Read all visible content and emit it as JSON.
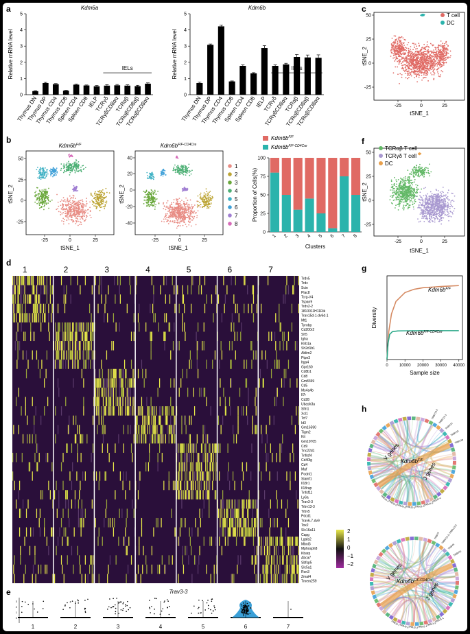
{
  "panel_labels": {
    "a": "a",
    "b": "b",
    "c": "c",
    "d": "d",
    "e": "e",
    "f": "f",
    "g": "g",
    "h": "h"
  },
  "colors": {
    "tcell": "#e06a64",
    "dc": "#2bb3ac",
    "cre_fill": "#2bb3ac",
    "ff_fill": "#e06a64",
    "tcrab": "#62b866",
    "tcrgd": "#a898d0",
    "dc_f": "#e8a04c",
    "heat_low": "#2a0f3a",
    "heat_high": "#e8e84a"
  },
  "chart_data": [
    {
      "id": "a-left",
      "type": "bar",
      "title": "Kdm6a",
      "ylabel": "Relative mRNA level",
      "categories": [
        "Thymus DN",
        "Thymus DP",
        "Thymus CD4",
        "Thymus CD8",
        "Spleen CD4",
        "Spleen CD8",
        "IELP",
        "TCRγδ",
        "TCRγδCD8αα",
        "TCRαβ",
        "TCRαβCD8αβ",
        "TCRαβCD8αα"
      ],
      "values": [
        0.22,
        0.72,
        0.65,
        0.25,
        0.62,
        0.57,
        0.52,
        0.56,
        0.58,
        0.56,
        0.53,
        0.68
      ],
      "errors": [
        0.03,
        0.04,
        0.04,
        0.02,
        0.04,
        0.03,
        0.05,
        0.06,
        0.05,
        0.05,
        0.05,
        0.05
      ],
      "ylim": [
        0,
        5
      ],
      "yticks": [
        0,
        1,
        2,
        3,
        4,
        5
      ],
      "bracket_label": "IELs",
      "bracket_range": [
        7,
        11
      ]
    },
    {
      "id": "a-right",
      "type": "bar",
      "title": "Kdm6b",
      "ylabel": "Relative mRNA level",
      "categories": [
        "Thymus DN",
        "Thymus DP",
        "Thymus CD4",
        "Thymus CD8",
        "Spleen CD4",
        "Spleen CD8",
        "IELP",
        "TCRγδ",
        "TCRγδCD8αα",
        "TCRαβ",
        "TCRαβCD8αβ",
        "TCRαβCD8αα"
      ],
      "values": [
        0.72,
        3.08,
        4.22,
        0.82,
        1.78,
        1.32,
        2.88,
        1.78,
        1.87,
        2.33,
        2.3,
        2.28
      ],
      "errors": [
        0.05,
        0.05,
        0.07,
        0.03,
        0.06,
        0.04,
        0.15,
        0.06,
        0.07,
        0.15,
        0.15,
        0.18
      ],
      "ylim": [
        0,
        5
      ],
      "yticks": [
        0,
        1,
        2,
        3,
        4,
        5
      ],
      "bracket_label": "IELs",
      "bracket_range": [
        7,
        11
      ]
    },
    {
      "id": "b-bar",
      "type": "bar",
      "stacked": true,
      "ylabel": "Proportion of Cells(%)",
      "xlabel": "Clusters",
      "categories": [
        "1",
        "2",
        "3",
        "4",
        "5",
        "6",
        "7",
        "8"
      ],
      "series": [
        {
          "name": "Kdm6b",
          "sup": "F/F-CD4Cre",
          "values": [
            80,
            50,
            30,
            45,
            25,
            5,
            75,
            50
          ]
        },
        {
          "name": "Kdm6b",
          "sup": "F/F",
          "values": [
            20,
            50,
            70,
            55,
            75,
            95,
            25,
            50
          ]
        }
      ],
      "ylim": [
        0,
        100
      ],
      "yticks": [
        0,
        25,
        50,
        75,
        100
      ]
    },
    {
      "id": "g",
      "type": "line",
      "ylabel": "Diversity",
      "xlabel": "Sample size",
      "xticks": [
        0,
        10000,
        20000,
        30000,
        40000
      ],
      "xlim": [
        0,
        42000
      ],
      "ylim": [
        0,
        1800
      ],
      "series": [
        {
          "name": "Kdm6b",
          "sup": "F/F",
          "x": [
            0,
            1000,
            2500,
            5000,
            10000,
            15000,
            20000,
            30000,
            40000
          ],
          "y": [
            0,
            600,
            980,
            1250,
            1440,
            1510,
            1545,
            1570,
            1590
          ]
        },
        {
          "name": "Kdm6b",
          "sup": "F/F-CD4Cre",
          "x": [
            0,
            600,
            1500,
            3000,
            6000,
            10000,
            20000,
            40000
          ],
          "y": [
            0,
            350,
            540,
            600,
            615,
            618,
            620,
            620
          ]
        }
      ]
    }
  ],
  "b": {
    "plot1_title": "Kdm6b",
    "plot1_sup": "F/F",
    "plot2_title": "Kdm6b",
    "plot2_sup": "F/F-CD4Cre",
    "ylabel": "tSNE_2",
    "xlabel": "tSNE_1",
    "xticks": [
      "-25",
      "0",
      "25"
    ],
    "plot1_yticks": [
      "50",
      "25",
      "0",
      "-25"
    ],
    "plot2_yticks": [
      "40",
      "20",
      "0",
      "-20",
      "-40"
    ],
    "cluster_legend": [
      "1",
      "2",
      "3",
      "4",
      "5",
      "6",
      "7",
      "8"
    ],
    "cluster_colors": [
      "#e88c84",
      "#bca433",
      "#6aa83c",
      "#4caf74",
      "#3fb1c4",
      "#3fa0d8",
      "#a07ed2",
      "#d66ab8"
    ],
    "bar_legend": [
      {
        "name": "Kdm6b",
        "sup": "F/F"
      },
      {
        "name": "Kdm6b",
        "sup": "F/F-CD4Cre"
      }
    ]
  },
  "c": {
    "legend": [
      "T cell",
      "DC"
    ],
    "ylabel": "tSNE_2",
    "xlabel": "tSNE_1",
    "yticks": [
      "50",
      "25",
      "0",
      "-25"
    ],
    "xticks": [
      "-25",
      "0",
      "25"
    ]
  },
  "f": {
    "legend": [
      "TCRαβ T cell",
      "TCRγδ T cell",
      "DC"
    ],
    "ylabel": "tSNE_2",
    "xlabel": "tSNE_1",
    "yticks": [
      "50",
      "25",
      "0",
      "-25"
    ],
    "xticks": [
      "-25",
      "0",
      "25"
    ]
  },
  "d": {
    "clusters": [
      "1",
      "2",
      "3",
      "4",
      "5",
      "6",
      "7"
    ],
    "genes": [
      "Trdv5",
      "Trdc",
      "Scin",
      "Plac8",
      "Tcrg-V4",
      "Tspan9",
      "Trdv2-2",
      "1810011H11Rik",
      "Trav15d-1-dv6d-1",
      "Mt1",
      "Tyrobp",
      "Cd200r2",
      "Sh5",
      "Igha",
      "Klrb1a",
      "Sh2d1b1",
      "Ablim2",
      "Ptpn3",
      "Itga4",
      "Gpr160",
      "Cd8b1",
      "Cd8",
      "Gm8369",
      "Cd5",
      "Ms4a4b",
      "Il7r",
      "Cd28",
      "Ubash3a",
      "Slfn1",
      "Xcl1",
      "Tcf7",
      "Id3",
      "Gm16590",
      "Tigm2",
      "Kit",
      "Gm19705",
      "Cd9",
      "Tnc22d1",
      "Tnfrsf4",
      "Cd40lg",
      "Cd4",
      "Maf",
      "Podnl1",
      "Slamf1",
      "Il18r1",
      "Il18rap",
      "Tnfsf11",
      "Ly6a",
      "Trav3-3",
      "Trbv13-3",
      "Trbv5",
      "Pdcd1",
      "Trav6-7-dv9",
      "Tox2",
      "Slc16a11",
      "Capg",
      "Lgals2",
      "Mbnl3",
      "Mphosph8",
      "Kbarp",
      "Abca7",
      "Sbfsp5",
      "Slc5a1",
      "Ron3",
      "Zmat4",
      "Tmem259"
    ],
    "colorbar_ticks": [
      "2",
      "1",
      "0",
      "−1",
      "−2"
    ]
  },
  "e": {
    "title": "Trav3-3",
    "clusters": [
      "1",
      "2",
      "3",
      "4",
      "5",
      "6",
      "7"
    ],
    "yticks": [
      "3",
      "2",
      "1",
      "0"
    ]
  },
  "h": {
    "top_title": "Kdm6b",
    "top_sup": "F/F",
    "bottom_title": "Kdm6b",
    "bottom_sup": "F/F-CD4Cre",
    "v_label": "V genes",
    "j_label": "J genes",
    "top_v_labels": [
      "TRBV13-2",
      "TRBV13-3",
      "TRBV15",
      "TRBV19",
      "TRBV29"
    ],
    "top_j_labels": [
      "TRBJ1-1",
      "TRBJ1-2",
      "TRBJ1-3",
      "TRBJ2-1",
      "TRBJ2-3",
      "TRBJ2-5",
      "TRBJ2-7"
    ],
    "bottom_v_labels": [
      "TRBV3",
      "TRBV12-2+TRBV13-2",
      "TRBV5",
      "TRBV31"
    ],
    "bottom_j_labels": [
      "TRBJ1-1",
      "TRBJ1-2",
      "TRBJ2-1",
      "TRBJ2-2",
      "TRBJ2-5",
      "TRBJ2-7"
    ]
  }
}
